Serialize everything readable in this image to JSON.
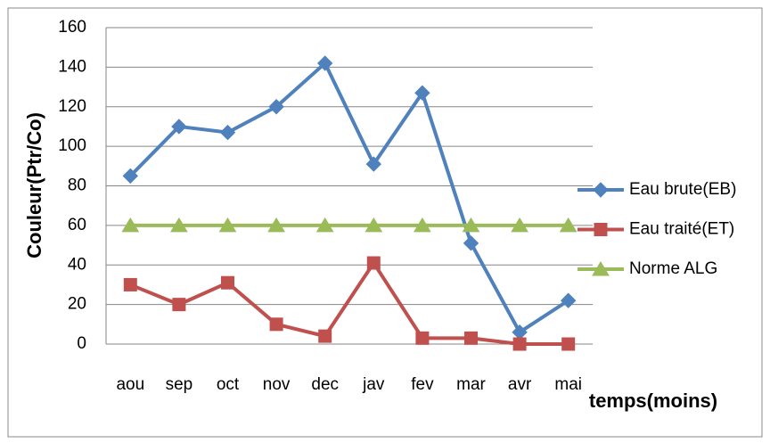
{
  "chart_data": {
    "type": "line",
    "categories": [
      "aou",
      "sep",
      "oct",
      "nov",
      "dec",
      "jav",
      "fev",
      "mar",
      "avr",
      "mai"
    ],
    "series": [
      {
        "name": "Eau brute(EB)",
        "color": "#4f81bd",
        "marker": "diamond",
        "values": [
          85,
          110,
          107,
          120,
          142,
          91,
          127,
          51,
          6,
          22
        ]
      },
      {
        "name": "Eau traité(ET)",
        "color": "#c0504d",
        "marker": "square",
        "values": [
          30,
          20,
          31,
          10,
          4,
          41,
          3,
          3,
          0,
          0
        ]
      },
      {
        "name": "Norme ALG",
        "color": "#9bbb59",
        "marker": "triangle",
        "values": [
          60,
          60,
          60,
          60,
          60,
          60,
          60,
          60,
          60,
          60
        ]
      }
    ],
    "y_label": "Couleur(Ptr/Co)",
    "x_label": "temps(moins)",
    "ylim": [
      0,
      160
    ],
    "yticks": [
      0,
      20,
      40,
      60,
      80,
      100,
      120,
      140,
      160
    ],
    "grid": true,
    "legend": "right"
  }
}
